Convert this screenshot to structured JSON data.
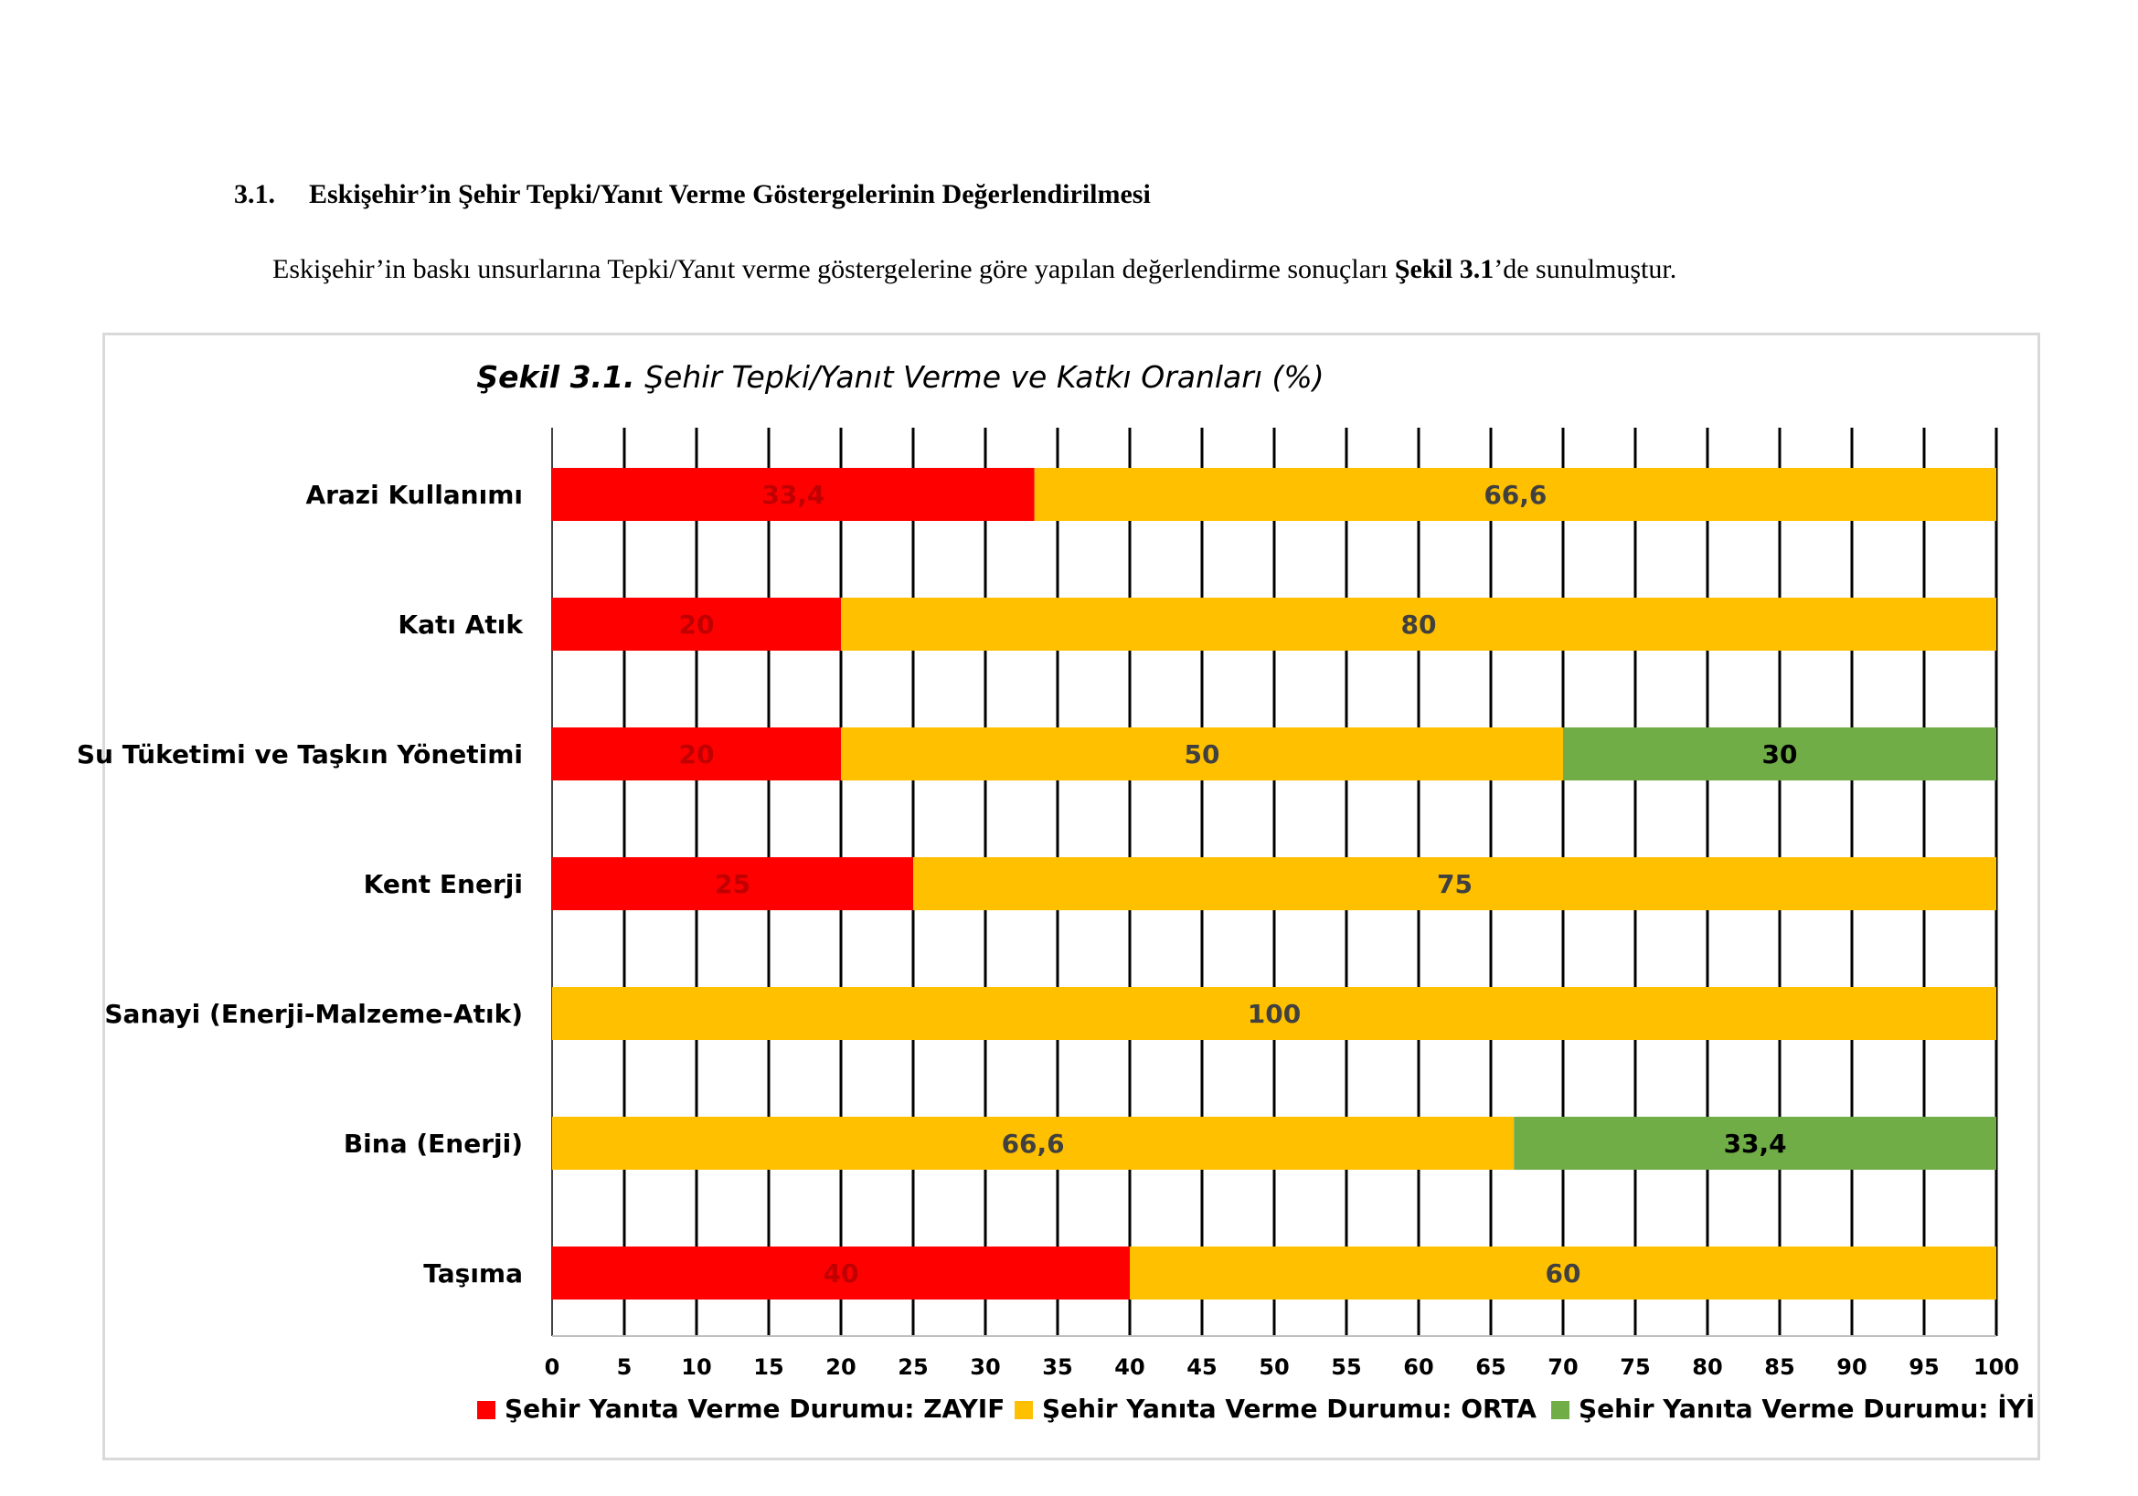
{
  "document": {
    "section_number": "3.1.",
    "section_title": "Eskişehir’in Şehir Tepki/Yanıt Verme Göstergelerinin Değerlendirilmesi",
    "paragraph_before": "Eskişehir’in baskı unsurlarına Tepki/Yanıt verme göstergelerine göre yapılan değerlendirme sonuçları ",
    "paragraph_bold": "Şekil 3.1",
    "paragraph_after": "’de sunulmuştur."
  },
  "chart_data": {
    "type": "bar",
    "orientation": "horizontal",
    "stacked": true,
    "title_bold": "Şekil 3.1.",
    "title_rest": " Şehir Tepki/Yanıt Verme ve Katkı Oranları (%)",
    "categories": [
      "Arazi Kullanımı",
      "Katı Atık",
      "Su Tüketimi ve Taşkın Yönetimi",
      "Kent Enerji",
      "Sanayi (Enerji-Malzeme-Atık)",
      "Bina (Enerji)",
      "Taşıma"
    ],
    "series": [
      {
        "name": "Şehir Yanıta Verme  Durumu: ZAYIF",
        "color": "#ff0000",
        "label_color": "#c00000",
        "values": [
          33.4,
          20,
          20,
          25,
          0,
          0,
          40
        ],
        "labels": [
          "33,4",
          "20",
          "20",
          "25",
          "",
          "",
          "40"
        ]
      },
      {
        "name": "Şehir Yanıta Verme  Durumu: ORTA",
        "color": "#ffc000",
        "label_color": "#404040",
        "values": [
          66.6,
          80,
          50,
          75,
          100,
          66.6,
          60
        ],
        "labels": [
          "66,6",
          "80",
          "50",
          "75",
          "100",
          "66,6",
          "60"
        ]
      },
      {
        "name": "Şehir Yanıta Verme  Durumu: İYİ",
        "color": "#70ad47",
        "label_color": "#000000",
        "values": [
          0,
          0,
          30,
          0,
          0,
          33.4,
          0
        ],
        "labels": [
          "",
          "",
          "30",
          "",
          "",
          "33,4",
          ""
        ]
      }
    ],
    "xlim": [
      0,
      100
    ],
    "xticks": [
      "0",
      "5",
      "10",
      "15",
      "20",
      "25",
      "30",
      "35",
      "40",
      "45",
      "50",
      "55",
      "60",
      "65",
      "70",
      "75",
      "80",
      "85",
      "90",
      "95",
      "100"
    ],
    "grid": true,
    "legend_position": "bottom"
  }
}
